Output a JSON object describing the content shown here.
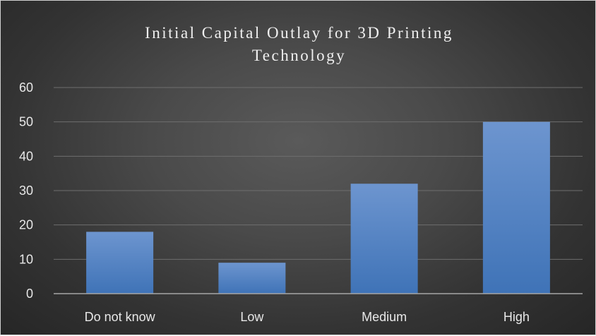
{
  "chart_data": {
    "type": "bar",
    "title": "Initial Capital Outlay for 3D Printing Technology",
    "categories": [
      "Do not know",
      "Low",
      "Medium",
      "High"
    ],
    "values": [
      18,
      9,
      32,
      50
    ],
    "ylim": [
      0,
      60
    ],
    "yticks": [
      0,
      10,
      20,
      30,
      40,
      50,
      60
    ],
    "grid": true,
    "legend": "none",
    "colors": {
      "bar_top": "#6d95cf",
      "bar_bottom": "#3f73b7",
      "grid": "#6e6e6e",
      "axis": "#a6a6a6"
    }
  }
}
